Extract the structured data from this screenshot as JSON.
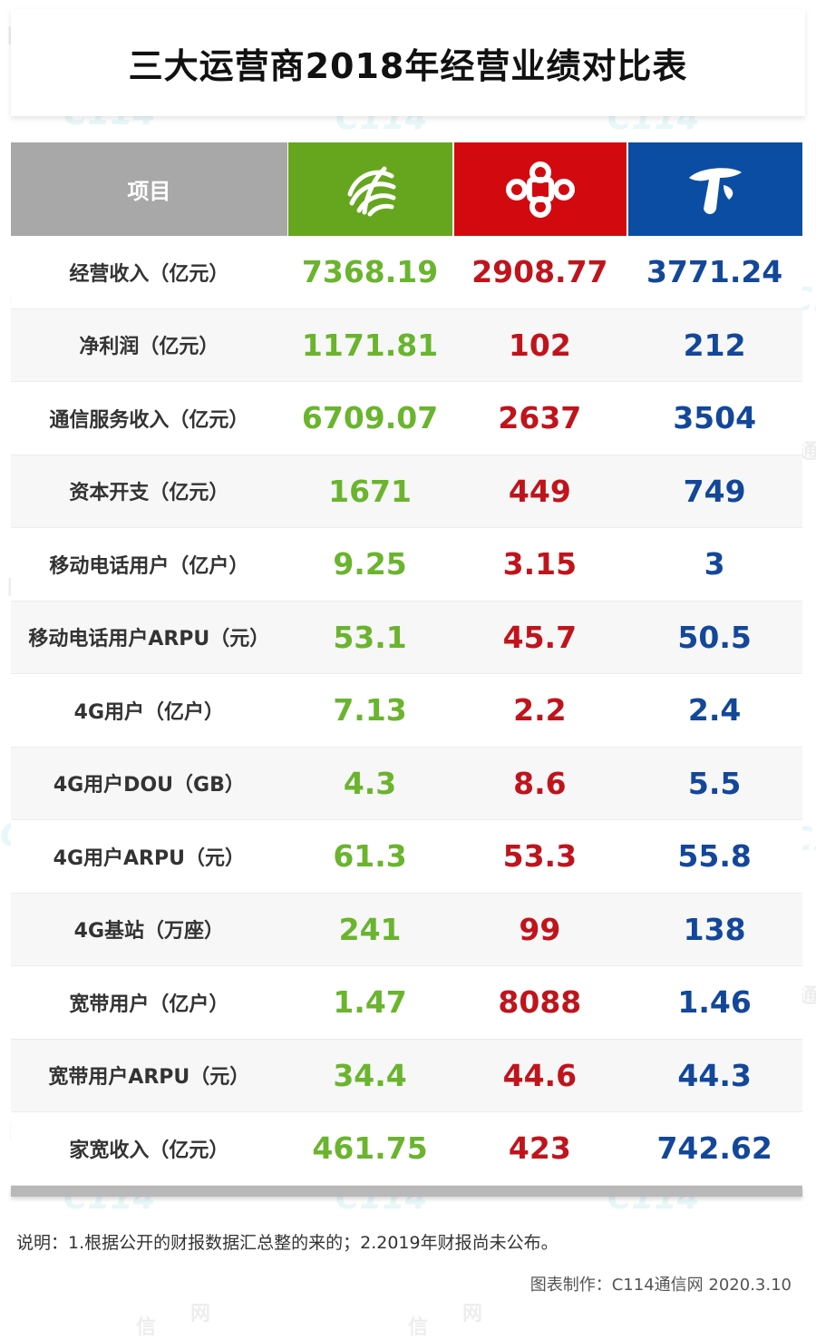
{
  "title": "三大运营商2018年经营业绩对比表",
  "header": {
    "item_label": "项目",
    "colors": {
      "item": "#a8a8a8",
      "china_mobile": "#66a61e",
      "china_unicom": "#d20a10",
      "china_telecom": "#0b4da2"
    },
    "icons": {
      "china_mobile": "china-mobile-logo-icon",
      "china_unicom": "china-unicom-logo-icon",
      "china_telecom": "china-telecom-logo-icon"
    }
  },
  "rows": [
    {
      "label": "经营收入（亿元）",
      "cm": "7368.19",
      "cu": "2908.77",
      "ct": "3771.24"
    },
    {
      "label": "净利润（亿元）",
      "cm": "1171.81",
      "cu": "102",
      "ct": "212"
    },
    {
      "label": "通信服务收入（亿元）",
      "cm": "6709.07",
      "cu": "2637",
      "ct": "3504"
    },
    {
      "label": "资本开支（亿元）",
      "cm": "1671",
      "cu": "449",
      "ct": "749"
    },
    {
      "label": "移动电话用户（亿户）",
      "cm": "9.25",
      "cu": "3.15",
      "ct": "3"
    },
    {
      "label": "移动电话用户ARPU（元）",
      "cm": "53.1",
      "cu": "45.7",
      "ct": "50.5"
    },
    {
      "label": "4G用户（亿户）",
      "cm": "7.13",
      "cu": "2.2",
      "ct": "2.4"
    },
    {
      "label": "4G用户DOU（GB）",
      "cm": "4.3",
      "cu": "8.6",
      "ct": "5.5"
    },
    {
      "label": "4G用户ARPU（元）",
      "cm": "61.3",
      "cu": "53.3",
      "ct": "55.8"
    },
    {
      "label": "4G基站（万座）",
      "cm": "241",
      "cu": "99",
      "ct": "138"
    },
    {
      "label": "宽带用户（亿户）",
      "cm": "1.47",
      "cu": "8088",
      "ct": "1.46"
    },
    {
      "label": "宽带用户ARPU（元）",
      "cm": "34.4",
      "cu": "44.6",
      "ct": "44.3"
    },
    {
      "label": "家宽收入（亿元）",
      "cm": "461.75",
      "cu": "423",
      "ct": "742.62"
    }
  ],
  "value_colors": {
    "cm": "#6ab42e",
    "cu": "#c0141c",
    "ct": "#13479a"
  },
  "note": "说明：1.根据公开的财报数据汇总整的来的；2.2019年财报尚未公布。",
  "credit": "图表制作：C114通信网  2020.3.10",
  "watermark": {
    "chars": [
      "网",
      "通",
      "信"
    ],
    "logo": "C114"
  }
}
